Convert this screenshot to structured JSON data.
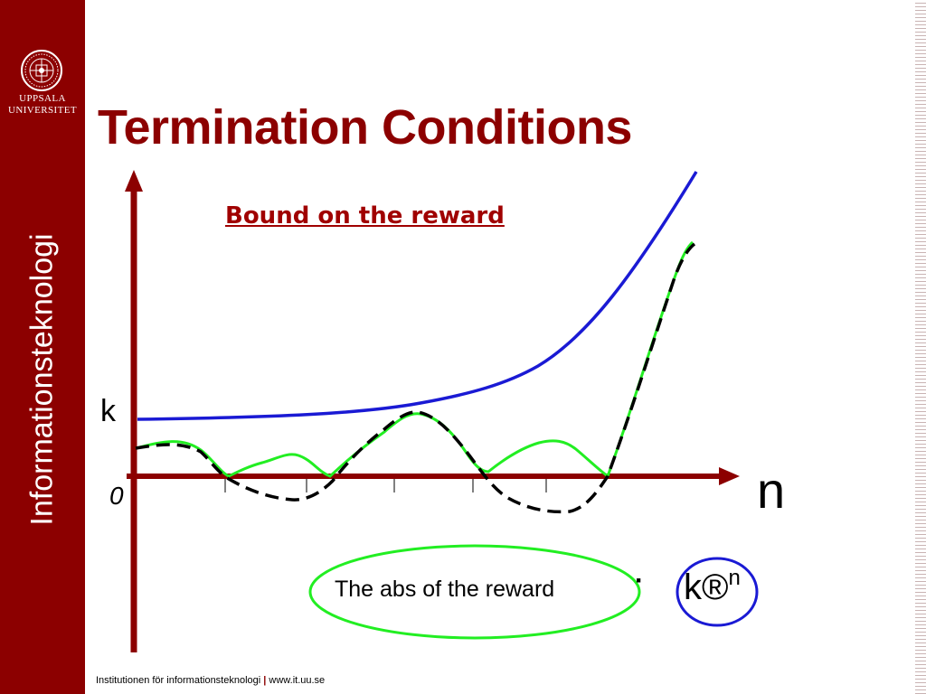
{
  "logo": {
    "line1": "UPPSALA",
    "line2": "UNIVERSITET"
  },
  "sidebar": {
    "label": "Informationsteknologi"
  },
  "slide": {
    "title": "Termination Conditions",
    "subtitle": "Bound on the reward"
  },
  "diagram": {
    "k_label": "k",
    "origin_label": "0",
    "x_axis_label": "n",
    "ellipse_text": "The abs of the reward",
    "dot": "·",
    "circle_text": "k®",
    "circle_sup": "n"
  },
  "colors": {
    "brand": "#8c0000",
    "bound_curve": "#1a1ad4",
    "abs_reward": "#22ee22",
    "reward": "#000000",
    "axes": "#8c0000"
  },
  "footer": {
    "text": "Institutionen för informationsteknologi",
    "separator": "|",
    "url": "www.it.uu.se"
  }
}
